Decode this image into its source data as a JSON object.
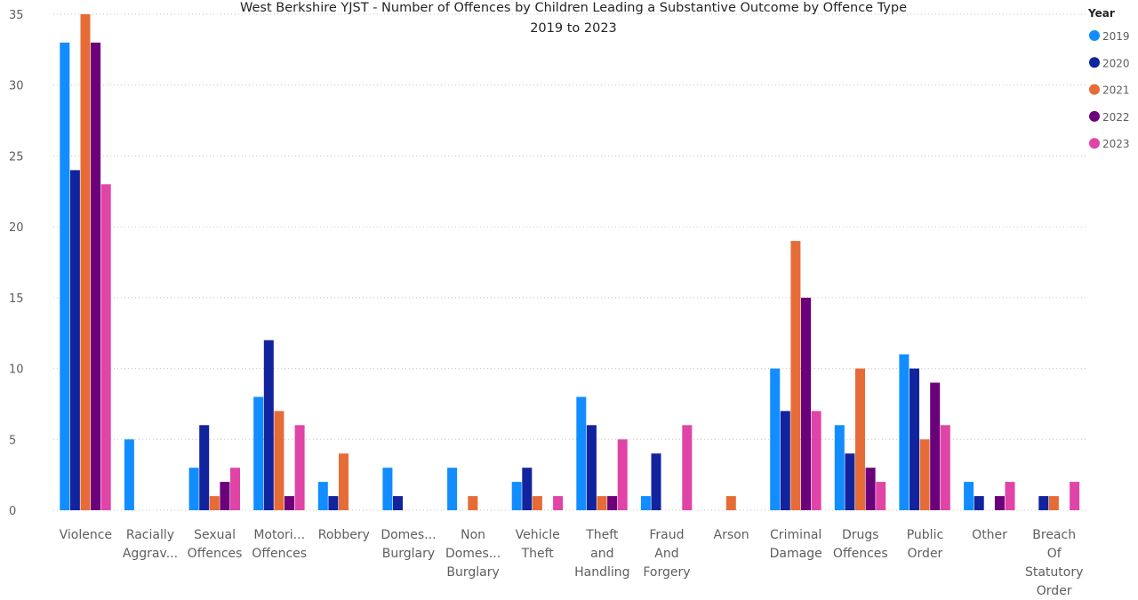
{
  "chart_data": {
    "type": "bar",
    "title": "West Berkshire YJST - Number of Offences by Children Leading a Substantive Outcome by Offence Type",
    "subtitle": "2019 to 2023",
    "xlabel": "",
    "ylabel": "",
    "ylim": [
      0,
      35
    ],
    "yticks": [
      "0",
      "5",
      "10",
      "15",
      "20",
      "25",
      "30",
      "35"
    ],
    "grid": true,
    "legend_title": "Year",
    "legend_position": "right",
    "categories": [
      [
        "Violence"
      ],
      [
        "Racially",
        "Aggrav..."
      ],
      [
        "Sexual",
        "Offences"
      ],
      [
        "Motori...",
        "Offences"
      ],
      [
        "Robbery"
      ],
      [
        "Domes...",
        "Burglary"
      ],
      [
        "Non",
        "Domes...",
        "Burglary"
      ],
      [
        "Vehicle",
        "Theft"
      ],
      [
        "Theft",
        "and",
        "Handling"
      ],
      [
        "Fraud",
        "And",
        "Forgery"
      ],
      [
        "Arson"
      ],
      [
        "Criminal",
        "Damage"
      ],
      [
        "Drugs",
        "Offences"
      ],
      [
        "Public",
        "Order"
      ],
      [
        "Other"
      ],
      [
        "Breach",
        "Of",
        "Statutory",
        "Order"
      ]
    ],
    "series": [
      {
        "name": "2019",
        "color": "#118dff",
        "values": [
          33,
          5,
          3,
          8,
          2,
          3,
          3,
          2,
          8,
          1,
          0,
          10,
          6,
          11,
          2,
          0
        ]
      },
      {
        "name": "2020",
        "color": "#12239e",
        "values": [
          24,
          0,
          6,
          12,
          1,
          1,
          0,
          3,
          6,
          4,
          0,
          7,
          4,
          10,
          1,
          1
        ]
      },
      {
        "name": "2021",
        "color": "#e66c37",
        "values": [
          35,
          0,
          1,
          7,
          4,
          0,
          1,
          1,
          1,
          0,
          1,
          19,
          10,
          5,
          0,
          1
        ]
      },
      {
        "name": "2022",
        "color": "#6b007b",
        "values": [
          33,
          0,
          2,
          1,
          0,
          0,
          0,
          0,
          1,
          0,
          0,
          15,
          3,
          9,
          1,
          0
        ]
      },
      {
        "name": "2023",
        "color": "#e044a7",
        "values": [
          23,
          0,
          3,
          6,
          0,
          0,
          0,
          1,
          5,
          6,
          0,
          7,
          2,
          6,
          2,
          2
        ]
      }
    ]
  }
}
